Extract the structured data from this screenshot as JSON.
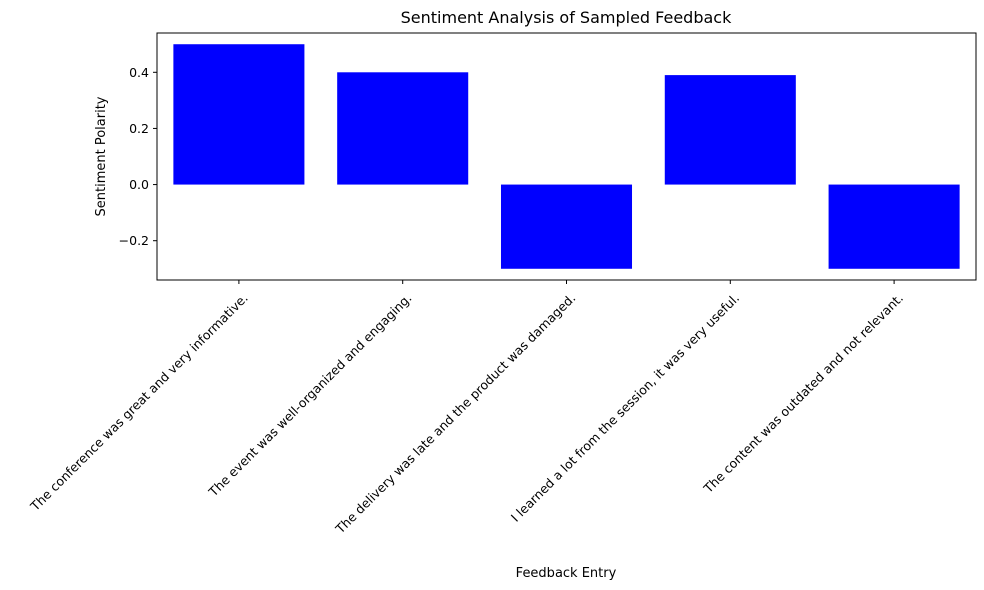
{
  "chart_data": {
    "type": "bar",
    "title": "Sentiment Analysis of Sampled Feedback",
    "xlabel": "Feedback Entry",
    "ylabel": "Sentiment Polarity",
    "categories": [
      "The conference was great and very informative.",
      "The event was well-organized and engaging.",
      "The delivery was late and the product was damaged.",
      "I learned a lot from the session, it was very useful.",
      "The content was outdated and not relevant."
    ],
    "values": [
      0.5,
      0.4,
      -0.3,
      0.39,
      -0.3
    ],
    "ylim": [
      -0.34,
      0.54
    ],
    "yticks": [
      -0.2,
      0.0,
      0.2,
      0.4
    ],
    "ytick_labels": [
      "−0.2",
      "0.0",
      "0.2",
      "0.4"
    ],
    "bar_color": "#0000ff",
    "grid": false
  }
}
